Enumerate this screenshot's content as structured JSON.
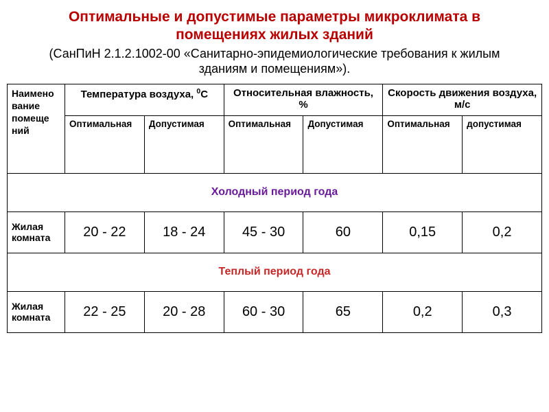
{
  "title": "Оптимальные и допустимые параметры микроклимата в помещениях жилых зданий",
  "subtitle": "(СанПиН 2.1.2.1002-00 «Санитарно-эпидемиологические требования к жилым зданиям и помещениям»).",
  "table": {
    "columns": {
      "name_header_lines": [
        "Наимено",
        "вание",
        "помеще",
        "ний"
      ],
      "groups": [
        {
          "label_html": "Температура воздуха, <sup>0</sup>С",
          "sub": [
            "Оптимальная",
            "Допустимая"
          ]
        },
        {
          "label_html": "Относительная влажность, %",
          "sub": [
            "Оптимальная",
            "Допустимая"
          ]
        },
        {
          "label_html": "Скорость движения воздуха, м/с",
          "sub": [
            "Оптимальная",
            "допустимая"
          ]
        }
      ]
    },
    "sections": [
      {
        "title": "Холодный период года",
        "class": "cold",
        "row": {
          "label": "Жилая комната",
          "values": [
            "20 - 22",
            "18 - 24",
            "45 - 30",
            "60",
            "0,15",
            "0,2"
          ]
        }
      },
      {
        "title": "Теплый период года",
        "class": "warm",
        "row": {
          "label": "Жилая комната",
          "values": [
            "22 - 25",
            "20 - 28",
            "60 - 30",
            "65",
            "0,2",
            "0,3"
          ]
        }
      }
    ]
  },
  "style": {
    "title_color": "#b80000",
    "cold_color": "#6a1b9a",
    "warm_color": "#c62828",
    "border_color": "#000000",
    "background": "#ffffff"
  }
}
